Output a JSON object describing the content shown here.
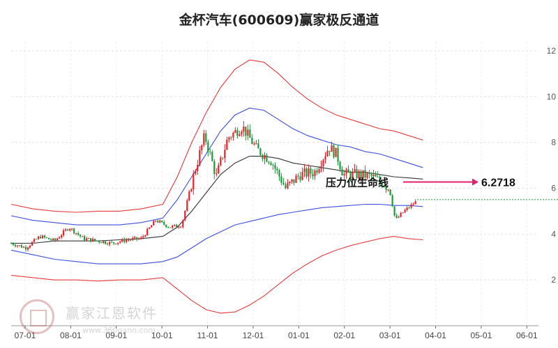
{
  "chart_data": {
    "type": "candlestick",
    "title": "金杯汽车(600609)赢家极反通道",
    "x_tick_labels": [
      "07-01",
      "08-01",
      "09-01",
      "10-01",
      "11-01",
      "12-01",
      "01-01",
      "02-01",
      "03-01",
      "04-01",
      "05-01",
      "06-01"
    ],
    "y_ticks": [
      2,
      4,
      6,
      8,
      10,
      12
    ],
    "ylim": [
      0,
      13
    ],
    "grid": true,
    "annotation": {
      "text": "压力位生命线",
      "value_label": "6.2718",
      "value": 6.2718
    },
    "last_price": 5.5,
    "colors": {
      "up": "#e8202a",
      "down": "#1c9a3a",
      "outer_band": "#e83a3a",
      "inner_band": "#3a4fe0",
      "mid_line": "#333333",
      "arrow": "#e0206a"
    },
    "bands": {
      "x": [
        0,
        15,
        30,
        45,
        60,
        75,
        90,
        105,
        115,
        125,
        135,
        145,
        155,
        165,
        175,
        185,
        195,
        205,
        215,
        225,
        235,
        245,
        255,
        265,
        275,
        285
      ],
      "outer_upper": [
        5.3,
        5.1,
        5.0,
        4.95,
        5.0,
        5.0,
        5.1,
        5.3,
        6.5,
        8.0,
        9.3,
        10.4,
        11.2,
        11.6,
        11.5,
        11.0,
        10.4,
        9.9,
        9.5,
        9.2,
        9.0,
        8.8,
        8.6,
        8.5,
        8.3,
        8.1
      ],
      "inner_upper": [
        4.8,
        4.6,
        4.5,
        4.4,
        4.4,
        4.4,
        4.5,
        4.7,
        5.5,
        6.5,
        7.5,
        8.5,
        9.2,
        9.5,
        9.4,
        9.0,
        8.6,
        8.3,
        8.1,
        7.9,
        7.8,
        7.6,
        7.5,
        7.3,
        7.1,
        6.9
      ],
      "mid": [
        3.6,
        3.6,
        3.7,
        3.7,
        3.7,
        3.75,
        3.8,
        3.9,
        4.3,
        5.0,
        5.8,
        6.6,
        7.1,
        7.4,
        7.4,
        7.3,
        7.1,
        7.0,
        6.9,
        6.8,
        6.7,
        6.7,
        6.6,
        6.5,
        6.45,
        6.4
      ],
      "inner_lower": [
        3.3,
        3.1,
        2.9,
        2.8,
        2.7,
        2.7,
        2.7,
        2.8,
        3.0,
        3.4,
        3.8,
        4.1,
        4.4,
        4.55,
        4.7,
        4.85,
        4.95,
        5.05,
        5.15,
        5.2,
        5.25,
        5.3,
        5.3,
        5.25,
        5.25,
        5.2
      ],
      "outer_lower": [
        2.2,
        2.1,
        2.0,
        2.0,
        1.95,
        2.0,
        2.0,
        2.1,
        1.6,
        1.1,
        0.7,
        0.55,
        0.6,
        0.9,
        1.3,
        1.8,
        2.3,
        2.7,
        3.05,
        3.3,
        3.5,
        3.65,
        3.8,
        3.9,
        3.8,
        3.75
      ]
    },
    "price_path": {
      "x": [
        0,
        10,
        20,
        30,
        40,
        50,
        60,
        70,
        80,
        90,
        100,
        110,
        118,
        126,
        134,
        142,
        150,
        160,
        170,
        180,
        190,
        200,
        210,
        220,
        225,
        230,
        240,
        250,
        258,
        262,
        266,
        272,
        280
      ],
      "close": [
        3.6,
        3.4,
        3.9,
        3.7,
        4.3,
        3.8,
        3.7,
        3.6,
        3.75,
        3.8,
        4.6,
        4.3,
        4.4,
        6.5,
        8.3,
        6.5,
        8.2,
        8.7,
        7.7,
        7.2,
        6.0,
        6.6,
        6.7,
        7.8,
        7.5,
        6.6,
        6.6,
        6.5,
        6.2,
        5.9,
        4.6,
        5.0,
        5.4
      ]
    }
  },
  "watermark": {
    "name": "赢家江恩软件",
    "url": "www.360gann.com"
  }
}
